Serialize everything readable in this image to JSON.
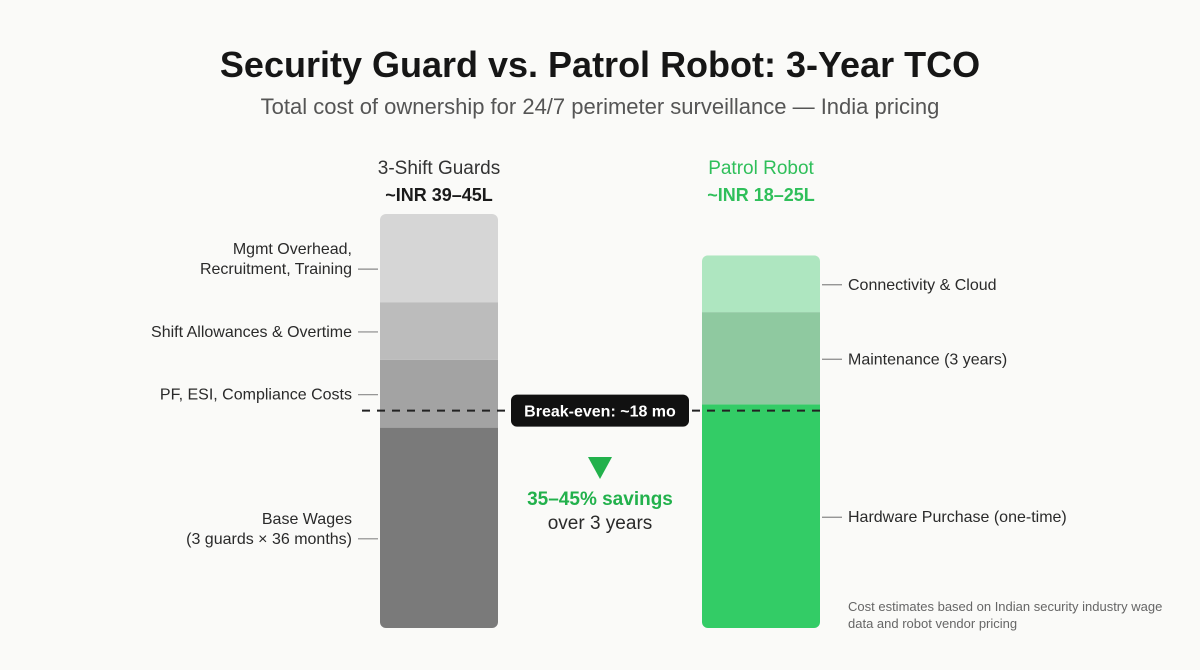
{
  "title": "Security Guard vs. Patrol Robot: 3-Year TCO",
  "subtitle": "Total cost of ownership for 24/7 perimeter surveillance — India pricing",
  "footnote": "Cost estimates based on Indian security industry wage data and robot vendor pricing",
  "colors": {
    "guard_header": "#333333",
    "robot_header": "#2fbf5a",
    "savings": "#22b14c",
    "callout_bg": "#111111",
    "callout_text": "#ffffff"
  },
  "chart_data": {
    "type": "stacked-bar",
    "unit": "share of bar height",
    "ylim": [
      0,
      1
    ],
    "bars": [
      {
        "name": "3-Shift Guards",
        "total_label": "~INR 39–45L",
        "top": 1.0,
        "segments": [
          {
            "label": "Base Wages\n(3 guards × 36 months)",
            "from": 0.0,
            "to": 0.484,
            "color": "#7a7a7a"
          },
          {
            "label": "PF, ESI, Compliance Costs",
            "from": 0.484,
            "to": 0.648,
            "color": "#a3a3a3"
          },
          {
            "label": "Shift Allowances & Overtime",
            "from": 0.648,
            "to": 0.787,
            "color": "#bcbcbc"
          },
          {
            "label": "Mgmt Overhead,\nRecruitment, Training",
            "from": 0.787,
            "to": 1.0,
            "color": "#d6d6d6"
          }
        ]
      },
      {
        "name": "Patrol Robot",
        "total_label": "~INR 18–25L",
        "top": 0.9,
        "segments": [
          {
            "label": "Hardware Purchase (one-time)",
            "from": 0.0,
            "to": 0.54,
            "color": "#33cc66"
          },
          {
            "label": "Maintenance (3 years)",
            "from": 0.54,
            "to": 0.763,
            "color": "#8fc9a0"
          },
          {
            "label": "Connectivity & Cloud",
            "from": 0.763,
            "to": 0.9,
            "color": "#aee6c0"
          }
        ]
      }
    ],
    "break_even": {
      "level": 0.525,
      "label": "Break-even: ~18 mo"
    },
    "savings": {
      "line1": "35–45% savings",
      "line2": "over 3 years"
    }
  }
}
